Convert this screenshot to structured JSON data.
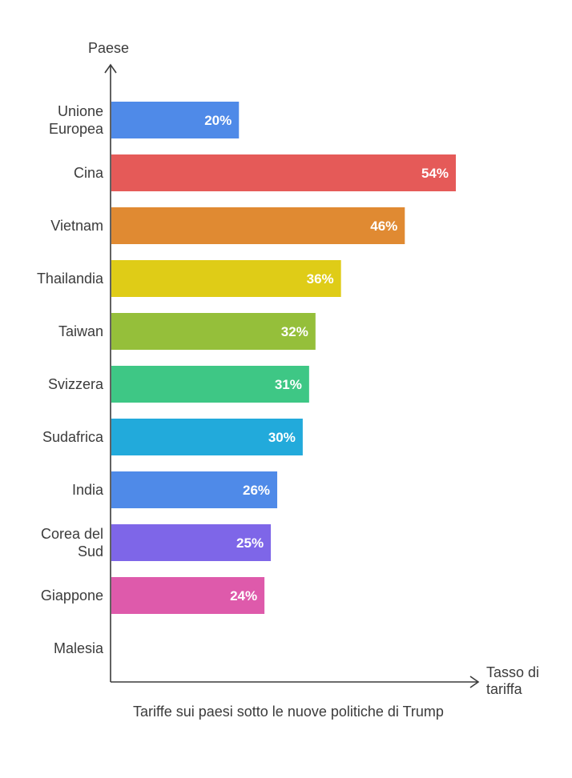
{
  "chart_data": {
    "type": "bar",
    "orientation": "horizontal",
    "ylabel": "Paese",
    "xlabel": "Tasso di tariffa",
    "caption": "Tariffe sui paesi sotto le nuove politiche di Trump",
    "value_suffix": "%",
    "xlim": [
      0,
      54
    ],
    "grid": false,
    "legend": "none",
    "categories": [
      {
        "label": [
          "Unione",
          "Europea"
        ],
        "value": 20,
        "color": "#4f8ae8"
      },
      {
        "label": [
          "Cina"
        ],
        "value": 54,
        "color": "#e55a58"
      },
      {
        "label": [
          "Vietnam"
        ],
        "value": 46,
        "color": "#e08a32"
      },
      {
        "label": [
          "Thailandia"
        ],
        "value": 36,
        "color": "#dfcc17"
      },
      {
        "label": [
          "Taiwan"
        ],
        "value": 32,
        "color": "#95bf3a"
      },
      {
        "label": [
          "Svizzera"
        ],
        "value": 31,
        "color": "#3ec785"
      },
      {
        "label": [
          "Sudafrica"
        ],
        "value": 30,
        "color": "#22aadb"
      },
      {
        "label": [
          "India"
        ],
        "value": 26,
        "color": "#4f8ae8"
      },
      {
        "label": [
          "Corea del",
          "Sud"
        ],
        "value": 25,
        "color": "#7e66e8"
      },
      {
        "label": [
          "Giappone"
        ],
        "value": 24,
        "color": "#de5aab"
      },
      {
        "label": [
          "Malesia"
        ],
        "value": null,
        "color": "#4f8ae8"
      }
    ]
  }
}
